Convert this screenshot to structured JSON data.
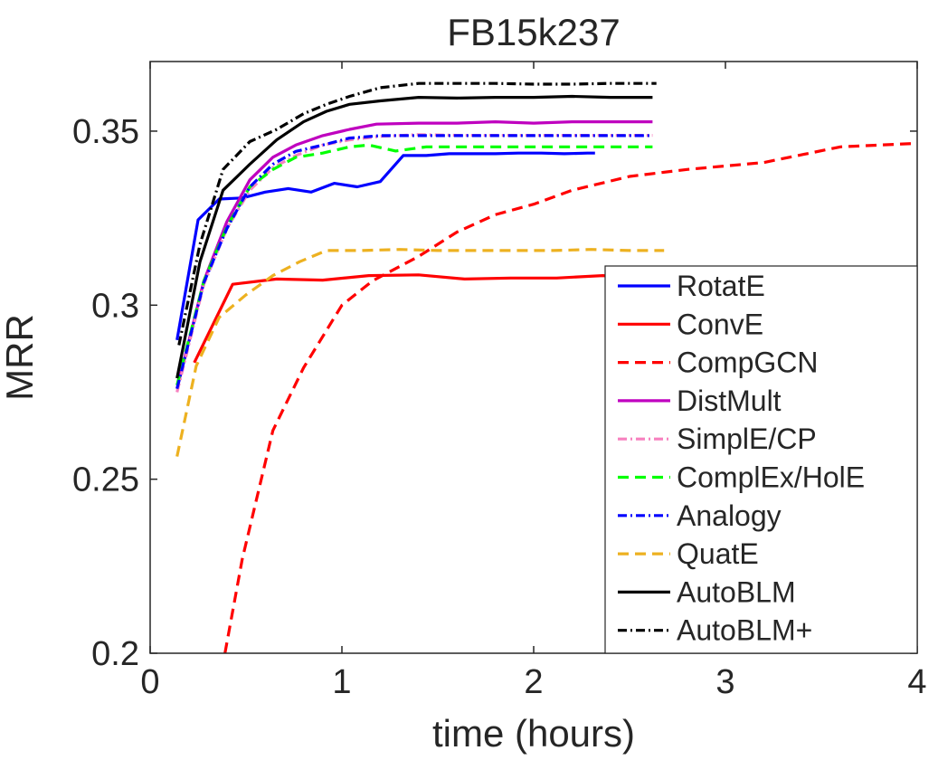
{
  "chart_data": {
    "type": "line",
    "title": "FB15k237",
    "xlabel": "time (hours)",
    "ylabel": "MRR",
    "xlim": [
      0,
      4
    ],
    "ylim": [
      0.2,
      0.37
    ],
    "xticks": [
      0,
      1,
      2,
      3,
      4
    ],
    "xtick_labels": [
      "0",
      "1",
      "2",
      "3",
      "4"
    ],
    "yticks": [
      0.2,
      0.25,
      0.3,
      0.35
    ],
    "ytick_labels": [
      "0.2",
      "0.25",
      "0.3",
      "0.35"
    ],
    "grid": false,
    "legend_position": "bottom-right",
    "series": [
      {
        "name": "RotatE",
        "color": "#0000ff",
        "dash": "solid",
        "x": [
          0.14,
          0.25,
          0.36,
          0.48,
          0.6,
          0.72,
          0.84,
          0.96,
          1.08,
          1.2,
          1.32,
          1.44,
          1.56,
          1.68,
          1.8,
          1.92,
          2.04,
          2.16,
          2.28,
          2.32
        ],
        "y": [
          0.29,
          0.3245,
          0.3305,
          0.3308,
          0.3325,
          0.3335,
          0.3325,
          0.335,
          0.334,
          0.3355,
          0.343,
          0.343,
          0.3435,
          0.3435,
          0.3435,
          0.3437,
          0.3437,
          0.3435,
          0.3437,
          0.3437
        ]
      },
      {
        "name": "ConvE",
        "color": "#ff0000",
        "dash": "solid",
        "x": [
          0.23,
          0.43,
          0.66,
          0.9,
          1.14,
          1.4,
          1.64,
          1.88,
          2.12,
          2.36,
          2.6
        ],
        "y": [
          0.2835,
          0.306,
          0.3075,
          0.3072,
          0.3085,
          0.3087,
          0.3075,
          0.3078,
          0.3078,
          0.3085,
          0.3075
        ]
      },
      {
        "name": "CompGCN",
        "color": "#ff0000",
        "dash": "dashed",
        "x": [
          0.39,
          0.48,
          0.64,
          0.8,
          1.0,
          1.16,
          1.4,
          1.6,
          1.8,
          2.0,
          2.2,
          2.5,
          2.8,
          3.2,
          3.6,
          4.0
        ],
        "y": [
          0.2,
          0.227,
          0.264,
          0.282,
          0.3,
          0.307,
          0.314,
          0.321,
          0.326,
          0.329,
          0.333,
          0.337,
          0.339,
          0.341,
          0.3455,
          0.3465
        ]
      },
      {
        "name": "DistMult",
        "color": "#bf00bf",
        "dash": "solid",
        "x": [
          0.14,
          0.28,
          0.4,
          0.52,
          0.64,
          0.76,
          0.9,
          1.04,
          1.18,
          1.4,
          1.6,
          1.8,
          2.0,
          2.2,
          2.4,
          2.62
        ],
        "y": [
          0.276,
          0.307,
          0.324,
          0.336,
          0.3425,
          0.346,
          0.3487,
          0.3505,
          0.352,
          0.3523,
          0.3523,
          0.3527,
          0.3523,
          0.3527,
          0.3527,
          0.3527
        ]
      },
      {
        "name": "SimplE/CP",
        "color": "#f781bf",
        "dash": "dashdot",
        "x": [
          0.14,
          0.28,
          0.4,
          0.52,
          0.64,
          0.76,
          0.9,
          1.04,
          1.2,
          1.4,
          1.6,
          1.8,
          2.0,
          2.2,
          2.4,
          2.62
        ],
        "y": [
          0.275,
          0.306,
          0.322,
          0.333,
          0.3395,
          0.343,
          0.346,
          0.3475,
          0.3485,
          0.349,
          0.3488,
          0.3488,
          0.3488,
          0.3488,
          0.3488,
          0.3488
        ]
      },
      {
        "name": "ComplEx/HolE",
        "color": "#00ff00",
        "dash": "dashed",
        "x": [
          0.14,
          0.28,
          0.4,
          0.52,
          0.64,
          0.76,
          0.9,
          1.04,
          1.14,
          1.28,
          1.44,
          1.6,
          1.8,
          2.0,
          2.2,
          2.4,
          2.62
        ],
        "y": [
          0.277,
          0.307,
          0.3225,
          0.334,
          0.339,
          0.3425,
          0.3437,
          0.3455,
          0.346,
          0.3443,
          0.3455,
          0.3455,
          0.3455,
          0.3455,
          0.3455,
          0.3455,
          0.3455
        ]
      },
      {
        "name": "Analogy",
        "color": "#0000ff",
        "dash": "dashdot",
        "x": [
          0.14,
          0.28,
          0.4,
          0.52,
          0.64,
          0.76,
          0.9,
          1.04,
          1.2,
          1.4,
          1.6,
          1.8,
          2.0,
          2.2,
          2.4,
          2.62
        ],
        "y": [
          0.276,
          0.3065,
          0.322,
          0.334,
          0.3405,
          0.3442,
          0.346,
          0.348,
          0.3487,
          0.3487,
          0.3487,
          0.3487,
          0.3487,
          0.3487,
          0.3487,
          0.3487
        ]
      },
      {
        "name": "QuatE",
        "color": "#edb120",
        "dash": "dashed",
        "x": [
          0.14,
          0.24,
          0.36,
          0.5,
          0.64,
          0.78,
          0.92,
          1.1,
          1.3,
          1.5,
          1.7,
          1.9,
          2.1,
          2.3,
          2.5,
          2.68
        ],
        "y": [
          0.2565,
          0.2825,
          0.2965,
          0.303,
          0.3085,
          0.3125,
          0.3157,
          0.3157,
          0.316,
          0.3157,
          0.3157,
          0.3157,
          0.3157,
          0.316,
          0.3157,
          0.3157
        ]
      },
      {
        "name": "AutoBLM",
        "color": "#000000",
        "dash": "solid",
        "x": [
          0.14,
          0.26,
          0.38,
          0.52,
          0.66,
          0.8,
          0.92,
          1.04,
          1.2,
          1.4,
          1.6,
          1.8,
          2.0,
          2.2,
          2.4,
          2.62
        ],
        "y": [
          0.279,
          0.3125,
          0.333,
          0.3405,
          0.3475,
          0.3527,
          0.3557,
          0.3577,
          0.3587,
          0.3597,
          0.3595,
          0.3597,
          0.3597,
          0.36,
          0.3597,
          0.3597
        ]
      },
      {
        "name": "AutoBLM+",
        "color": "#000000",
        "dash": "dashdot",
        "x": [
          0.15,
          0.26,
          0.38,
          0.52,
          0.66,
          0.8,
          0.92,
          1.04,
          1.2,
          1.4,
          1.6,
          1.8,
          2.0,
          2.2,
          2.4,
          2.64
        ],
        "y": [
          0.2885,
          0.3175,
          0.339,
          0.347,
          0.3505,
          0.355,
          0.3577,
          0.36,
          0.3625,
          0.3637,
          0.3637,
          0.3637,
          0.3635,
          0.3635,
          0.3637,
          0.3637
        ]
      }
    ]
  }
}
